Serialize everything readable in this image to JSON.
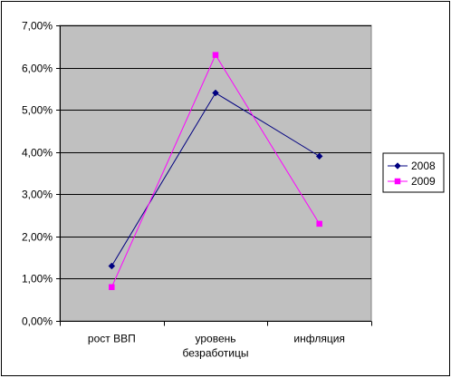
{
  "chart_data": {
    "type": "line",
    "categories": [
      [
        "рост ВВП"
      ],
      [
        "уровень",
        "безработицы"
      ],
      [
        "инфляция"
      ]
    ],
    "series": [
      {
        "name": "2008",
        "values": [
          1.3,
          5.4,
          3.9
        ],
        "color": "#000080",
        "marker": "diamond"
      },
      {
        "name": "2009",
        "values": [
          0.8,
          6.3,
          2.3
        ],
        "color": "#FF00FF",
        "marker": "square"
      }
    ],
    "y_ticks": [
      "0,00%",
      "1,00%",
      "2,00%",
      "3,00%",
      "4,00%",
      "5,00%",
      "6,00%",
      "7,00%"
    ],
    "ylim": [
      0,
      7
    ],
    "grid": true,
    "plot_background": "#C0C0C0",
    "legend_position": "right"
  }
}
